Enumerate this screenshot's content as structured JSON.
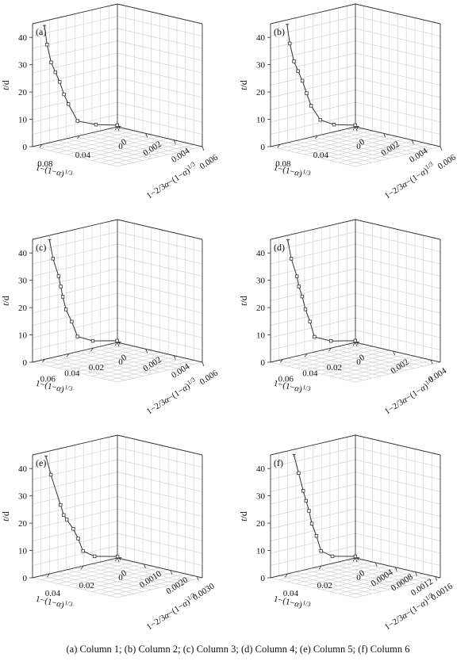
{
  "caption": "(a) Column 1; (b) Column 2; (c) Column 3; (d) Column 4; (e) Column 5; (f) Column 6",
  "chart_data": [
    {
      "type": "line3d",
      "panel_label": "(a)",
      "zlabel": "t/d",
      "zticks": [
        "0",
        "10",
        "20",
        "30",
        "40"
      ],
      "zlim": [
        0,
        45
      ],
      "xlabel": "1−(1−α)^1/3",
      "xticks": [
        "0",
        "0.04",
        "0.08"
      ],
      "xlim": [
        0,
        0.09
      ],
      "ylabel": "1−2/3α−(1−α)^1/3",
      "yticks": [
        "0",
        "0.002",
        "0.004",
        "0.006"
      ],
      "ylim": [
        0,
        0.006
      ],
      "points": [
        {
          "t": 0,
          "x": 0,
          "y": 0.00015
        },
        {
          "t": 1,
          "x": 0.0025,
          "y": 0.00015
        },
        {
          "t": 3,
          "x": 0.025,
          "y": 0.00015
        },
        {
          "t": 6,
          "x": 0.045,
          "y": 0.00018
        },
        {
          "t": 13,
          "x": 0.055,
          "y": 0.0002
        },
        {
          "t": 17,
          "x": 0.06,
          "y": 0.00022
        },
        {
          "t": 22,
          "x": 0.065,
          "y": 0.00025
        },
        {
          "t": 26,
          "x": 0.07,
          "y": 0.00028
        },
        {
          "t": 30,
          "x": 0.075,
          "y": 0.00032
        },
        {
          "t": 37,
          "x": 0.08,
          "y": 0.00036
        },
        {
          "t": 44,
          "x": 0.083,
          "y": 0.00038
        }
      ]
    },
    {
      "type": "line3d",
      "panel_label": "(b)",
      "zlabel": "t/d",
      "zticks": [
        "0",
        "10",
        "20",
        "30",
        "40"
      ],
      "zlim": [
        0,
        45
      ],
      "xlabel": "1−(1−α)^1/3",
      "xticks": [
        "0",
        "0.04",
        "0.08"
      ],
      "xlim": [
        0,
        0.09
      ],
      "ylabel": "1−2/3α−(1−α)^1/3",
      "yticks": [
        "0",
        "0.002",
        "0.004",
        "0.006"
      ],
      "ylim": [
        0,
        0.006
      ],
      "points": [
        {
          "t": 0,
          "x": 0,
          "y": 0.00015
        },
        {
          "t": 1,
          "x": 0.0025,
          "y": 0.00015
        },
        {
          "t": 3,
          "x": 0.025,
          "y": 0.00015
        },
        {
          "t": 6,
          "x": 0.04,
          "y": 0.00018
        },
        {
          "t": 12,
          "x": 0.05,
          "y": 0.0002
        },
        {
          "t": 17,
          "x": 0.055,
          "y": 0.00022
        },
        {
          "t": 22,
          "x": 0.06,
          "y": 0.00025
        },
        {
          "t": 26,
          "x": 0.065,
          "y": 0.00028
        },
        {
          "t": 30,
          "x": 0.07,
          "y": 0.00032
        },
        {
          "t": 37,
          "x": 0.075,
          "y": 0.00036
        },
        {
          "t": 44,
          "x": 0.078,
          "y": 0.00038
        }
      ]
    },
    {
      "type": "line3d",
      "panel_label": "(c)",
      "zlabel": "t/d",
      "zticks": [
        "0",
        "10",
        "20",
        "30",
        "40"
      ],
      "zlim": [
        0,
        45
      ],
      "xlabel": "1−(1−α)^1/3",
      "xticks": [
        "0",
        "0.02",
        "0.04",
        "0.06"
      ],
      "xlim": [
        0,
        0.07
      ],
      "ylabel": "1−2/3α−(1−α)^1/3",
      "yticks": [
        "0",
        "0.002",
        "0.004",
        "0.006"
      ],
      "ylim": [
        0,
        0.006
      ],
      "points": [
        {
          "t": 0,
          "x": 0,
          "y": 0.00015
        },
        {
          "t": 1,
          "x": 0.002,
          "y": 0.00015
        },
        {
          "t": 3,
          "x": 0.022,
          "y": 0.00015
        },
        {
          "t": 6,
          "x": 0.035,
          "y": 0.00018
        },
        {
          "t": 12,
          "x": 0.04,
          "y": 0.0002
        },
        {
          "t": 17,
          "x": 0.045,
          "y": 0.00022
        },
        {
          "t": 22,
          "x": 0.048,
          "y": 0.00025
        },
        {
          "t": 26,
          "x": 0.05,
          "y": 0.00028
        },
        {
          "t": 30,
          "x": 0.052,
          "y": 0.0003
        },
        {
          "t": 37,
          "x": 0.057,
          "y": 0.00033
        },
        {
          "t": 44,
          "x": 0.06,
          "y": 0.00035
        }
      ]
    },
    {
      "type": "line3d",
      "panel_label": "(d)",
      "zlabel": "t/d",
      "zticks": [
        "0",
        "10",
        "20",
        "30",
        "40"
      ],
      "zlim": [
        0,
        45
      ],
      "xlabel": "1−(1−α)^1/3",
      "xticks": [
        "0",
        "0.02",
        "0.04",
        "0.06"
      ],
      "xlim": [
        0,
        0.07
      ],
      "ylabel": "1−2/3α−(1−α)^1/3",
      "yticks": [
        "0",
        "0.002",
        "0.004"
      ],
      "ylim": [
        0,
        0.0045
      ],
      "points": [
        {
          "t": 0,
          "x": 0,
          "y": 0.00012
        },
        {
          "t": 1,
          "x": 0.002,
          "y": 0.00012
        },
        {
          "t": 3,
          "x": 0.022,
          "y": 0.00012
        },
        {
          "t": 6,
          "x": 0.036,
          "y": 0.00014
        },
        {
          "t": 12,
          "x": 0.04,
          "y": 0.00016
        },
        {
          "t": 17,
          "x": 0.044,
          "y": 0.00018
        },
        {
          "t": 22,
          "x": 0.047,
          "y": 0.0002
        },
        {
          "t": 26,
          "x": 0.05,
          "y": 0.00022
        },
        {
          "t": 30,
          "x": 0.052,
          "y": 0.00024
        },
        {
          "t": 37,
          "x": 0.057,
          "y": 0.00026
        },
        {
          "t": 44,
          "x": 0.06,
          "y": 0.00028
        }
      ]
    },
    {
      "type": "line3d",
      "panel_label": "(e)",
      "zlabel": "t/d",
      "zticks": [
        "0",
        "10",
        "20",
        "30",
        "40"
      ],
      "zlim": [
        0,
        45
      ],
      "xlabel": "1−(1−α)^1/3",
      "xticks": [
        "0",
        "0.02",
        "0.04"
      ],
      "xlim": [
        0,
        0.05
      ],
      "ylabel": "1−2/3α−(1−α)^1/3",
      "yticks": [
        "0",
        "0.0010",
        "0.0020",
        "0.0030"
      ],
      "ylim": [
        0,
        0.0032
      ],
      "points": [
        {
          "t": 0,
          "x": 0,
          "y": 0.0001
        },
        {
          "t": 1,
          "x": 0.0015,
          "y": 0.0001
        },
        {
          "t": 3,
          "x": 0.015,
          "y": 0.0001
        },
        {
          "t": 6,
          "x": 0.022,
          "y": 0.00011
        },
        {
          "t": 11,
          "x": 0.025,
          "y": 0.00012
        },
        {
          "t": 15,
          "x": 0.028,
          "y": 0.00013
        },
        {
          "t": 19,
          "x": 0.032,
          "y": 0.00014
        },
        {
          "t": 21,
          "x": 0.034,
          "y": 0.00015
        },
        {
          "t": 25,
          "x": 0.036,
          "y": 0.00016
        },
        {
          "t": 37,
          "x": 0.042,
          "y": 0.00018
        },
        {
          "t": 44,
          "x": 0.045,
          "y": 0.00019
        }
      ]
    },
    {
      "type": "line3d",
      "panel_label": "(f)",
      "zlabel": "t/d",
      "zticks": [
        "0",
        "10",
        "20",
        "30",
        "40"
      ],
      "zlim": [
        0,
        45
      ],
      "xlabel": "1−(1−α)^1/3",
      "xticks": [
        "0",
        "0.02",
        "0.04"
      ],
      "xlim": [
        0,
        0.05
      ],
      "ylabel": "1−2/3α−(1−α)^1/3",
      "yticks": [
        "0",
        "0.0004",
        "0.0008",
        "0.0012",
        "0.0016"
      ],
      "ylim": [
        0,
        0.0017
      ],
      "points": [
        {
          "t": 0,
          "x": 0,
          "y": 5e-05
        },
        {
          "t": 1,
          "x": 0.0015,
          "y": 5e-05
        },
        {
          "t": 3,
          "x": 0.015,
          "y": 5e-05
        },
        {
          "t": 6,
          "x": 0.022,
          "y": 6e-05
        },
        {
          "t": 12,
          "x": 0.025,
          "y": 7e-05
        },
        {
          "t": 17,
          "x": 0.028,
          "y": 8e-05
        },
        {
          "t": 22,
          "x": 0.03,
          "y": 9e-05
        },
        {
          "t": 26,
          "x": 0.032,
          "y": 0.0001
        },
        {
          "t": 30,
          "x": 0.034,
          "y": 0.00011
        },
        {
          "t": 37,
          "x": 0.037,
          "y": 0.00012
        },
        {
          "t": 44,
          "x": 0.04,
          "y": 0.00013
        }
      ]
    }
  ]
}
